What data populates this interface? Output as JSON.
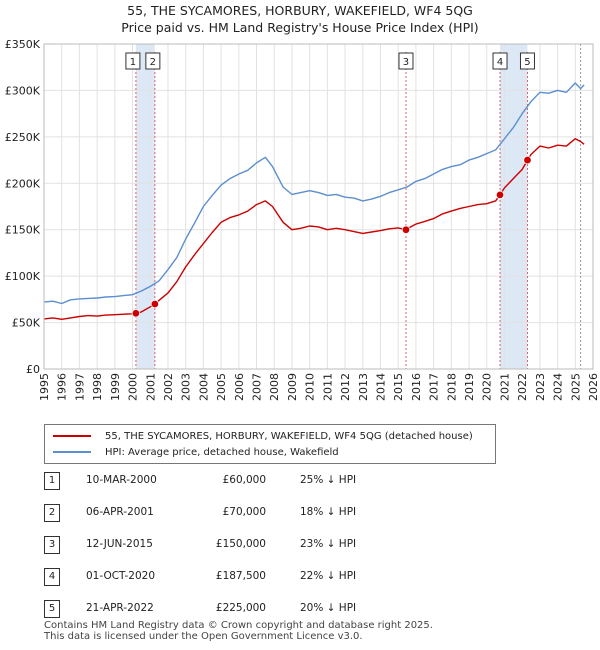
{
  "header": {
    "title_line1": "55, THE SYCAMORES, HORBURY, WAKEFIELD, WF4 5QG",
    "title_line2": "Price paid vs. HM Land Registry's House Price Index (HPI)"
  },
  "chart_data": {
    "type": "line",
    "y_axis": {
      "min": 0,
      "max": 350000,
      "ticks": [
        0,
        50000,
        100000,
        150000,
        200000,
        250000,
        300000,
        350000
      ],
      "tick_labels": [
        "£0",
        "£50K",
        "£100K",
        "£150K",
        "£200K",
        "£250K",
        "£300K",
        "£350K"
      ]
    },
    "x_axis": {
      "min": 1995,
      "max": 2026,
      "ticks": [
        1995,
        1996,
        1997,
        1998,
        1999,
        2000,
        2001,
        2002,
        2003,
        2004,
        2005,
        2006,
        2007,
        2008,
        2009,
        2010,
        2011,
        2012,
        2013,
        2014,
        2015,
        2016,
        2017,
        2018,
        2019,
        2020,
        2021,
        2022,
        2023,
        2024,
        2025,
        2026
      ],
      "tick_labels": [
        "1995",
        "1996",
        "1997",
        "1998",
        "1999",
        "2000",
        "2001",
        "2002",
        "2003",
        "2004",
        "2005",
        "2006",
        "2007",
        "2008",
        "2009",
        "2010",
        "2011",
        "2012",
        "2013",
        "2014",
        "2015",
        "2016",
        "2017",
        "2018",
        "2019",
        "2020",
        "2021",
        "2022",
        "2023",
        "2024",
        "2025",
        "2026"
      ]
    },
    "grid": true,
    "colors": {
      "property": "#cc0000",
      "hpi": "#5b8fd0",
      "shade": "#dde8f7",
      "vline": "#e06060",
      "now": "#999999"
    },
    "series": [
      {
        "name": "55, THE SYCAMORES, HORBURY, WAKEFIELD, WF4 5QG (detached house)",
        "x": [
          1995.0,
          1995.5,
          1996.0,
          1996.5,
          1997.0,
          1997.5,
          1998.0,
          1998.5,
          1999.0,
          1999.5,
          2000.0,
          2000.19,
          2000.5,
          2001.0,
          2001.26,
          2001.5,
          2002.0,
          2002.5,
          2003.0,
          2003.5,
          2004.0,
          2004.5,
          2005.0,
          2005.5,
          2006.0,
          2006.5,
          2007.0,
          2007.5,
          2007.9,
          2008.5,
          2009.0,
          2009.5,
          2010.0,
          2010.5,
          2011.0,
          2011.5,
          2012.0,
          2012.5,
          2013.0,
          2013.5,
          2014.0,
          2014.5,
          2015.0,
          2015.44,
          2015.6,
          2016.0,
          2016.5,
          2017.0,
          2017.5,
          2018.0,
          2018.5,
          2019.0,
          2019.5,
          2020.0,
          2020.5,
          2020.75,
          2021.0,
          2021.5,
          2022.0,
          2022.3,
          2022.5,
          2023.0,
          2023.5,
          2024.0,
          2024.5,
          2025.0,
          2025.3,
          2025.5
        ],
        "values": [
          54000,
          55000,
          53500,
          55000,
          56500,
          57500,
          57000,
          58000,
          58500,
          59000,
          59500,
          60000,
          61500,
          67000,
          70000,
          74000,
          82000,
          94000,
          110000,
          123000,
          135000,
          147000,
          158000,
          163000,
          166000,
          170000,
          177000,
          181000,
          175000,
          158000,
          150000,
          151500,
          154000,
          153000,
          150000,
          151500,
          150000,
          148000,
          146000,
          147500,
          149000,
          151000,
          152000,
          150000,
          152000,
          156000,
          159000,
          162000,
          167000,
          170000,
          173000,
          175000,
          177000,
          178000,
          181000,
          187500,
          195000,
          205000,
          215000,
          225000,
          231000,
          240000,
          238000,
          241000,
          240000,
          248000,
          245000,
          242000
        ]
      },
      {
        "name": "HPI: Average price, detached house, Wakefield",
        "x": [
          1995.0,
          1995.5,
          1996.0,
          1996.5,
          1997.0,
          1997.5,
          1998.0,
          1998.5,
          1999.0,
          1999.5,
          2000.0,
          2000.5,
          2001.0,
          2001.5,
          2002.0,
          2002.5,
          2003.0,
          2003.5,
          2004.0,
          2004.5,
          2005.0,
          2005.5,
          2006.0,
          2006.5,
          2007.0,
          2007.5,
          2007.9,
          2008.5,
          2009.0,
          2009.5,
          2010.0,
          2010.5,
          2011.0,
          2011.5,
          2012.0,
          2012.5,
          2013.0,
          2013.5,
          2014.0,
          2014.5,
          2015.0,
          2015.5,
          2016.0,
          2016.5,
          2017.0,
          2017.5,
          2018.0,
          2018.5,
          2019.0,
          2019.5,
          2020.0,
          2020.5,
          2021.0,
          2021.5,
          2022.0,
          2022.5,
          2023.0,
          2023.5,
          2024.0,
          2024.5,
          2025.0,
          2025.3,
          2025.5
        ],
        "values": [
          72000,
          73000,
          70500,
          74500,
          75500,
          76000,
          76500,
          77500,
          78000,
          79000,
          80000,
          84000,
          89000,
          95000,
          107000,
          120000,
          140000,
          157000,
          175000,
          187000,
          198000,
          205000,
          210000,
          214000,
          222000,
          228000,
          218000,
          196000,
          188000,
          190000,
          192000,
          190000,
          187000,
          188000,
          185000,
          184000,
          181000,
          183000,
          186000,
          190000,
          193000,
          196000,
          202000,
          205000,
          210000,
          215000,
          218000,
          220000,
          225000,
          228000,
          232000,
          236000,
          248000,
          260000,
          275000,
          288000,
          298000,
          297000,
          300000,
          298000,
          308000,
          302000,
          306000
        ]
      }
    ],
    "sales": [
      {
        "num": "1",
        "x": 2000.19,
        "value": 60000
      },
      {
        "num": "2",
        "x": 2001.26,
        "value": 70000
      },
      {
        "num": "3",
        "x": 2015.44,
        "value": 150000
      },
      {
        "num": "4",
        "x": 2020.75,
        "value": 187500
      },
      {
        "num": "5",
        "x": 2022.3,
        "value": 225000
      }
    ],
    "shaded_ranges": [
      [
        2000.19,
        2001.26
      ],
      [
        2020.75,
        2022.3
      ]
    ],
    "current_marker_x": 2025.3
  },
  "legend": {
    "property_label": "55, THE SYCAMORES, HORBURY, WAKEFIELD, WF4 5QG (detached house)",
    "hpi_label": "HPI: Average price, detached house, Wakefield"
  },
  "sales_table": [
    {
      "num": "1",
      "date": "10-MAR-2000",
      "price": "£60,000",
      "hpi": "25% ↓ HPI"
    },
    {
      "num": "2",
      "date": "06-APR-2001",
      "price": "£70,000",
      "hpi": "18% ↓ HPI"
    },
    {
      "num": "3",
      "date": "12-JUN-2015",
      "price": "£150,000",
      "hpi": "23% ↓ HPI"
    },
    {
      "num": "4",
      "date": "01-OCT-2020",
      "price": "£187,500",
      "hpi": "22% ↓ HPI"
    },
    {
      "num": "5",
      "date": "21-APR-2022",
      "price": "£225,000",
      "hpi": "20% ↓ HPI"
    }
  ],
  "footer": {
    "line1": "Contains HM Land Registry data © Crown copyright and database right 2025.",
    "line2": "This data is licensed under the Open Government Licence v3.0."
  }
}
